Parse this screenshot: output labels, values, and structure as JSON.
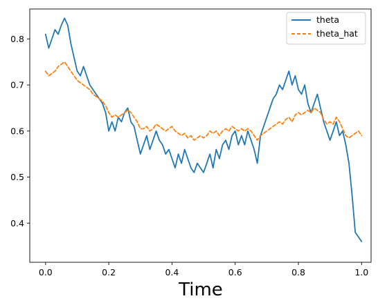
{
  "chart_data": {
    "type": "line",
    "title": "",
    "xlabel": "Time",
    "ylabel": "",
    "xlim": [
      -0.05,
      1.03
    ],
    "ylim": [
      0.315,
      0.865
    ],
    "x_ticks": [
      0.0,
      0.2,
      0.4,
      0.6,
      0.8,
      1.0
    ],
    "x_tick_labels": [
      "0.0",
      "0.2",
      "0.4",
      "0.6",
      "0.8",
      "1.0"
    ],
    "y_ticks": [
      0.4,
      0.5,
      0.6,
      0.7,
      0.8
    ],
    "y_tick_labels": [
      "0.4",
      "0.5",
      "0.6",
      "0.7",
      "0.8"
    ],
    "grid": false,
    "legend_position": "top-right",
    "series": [
      {
        "name": "theta",
        "color": "#1f77b4",
        "style": "solid",
        "x": [
          0.0,
          0.01,
          0.02,
          0.03,
          0.04,
          0.05,
          0.06,
          0.07,
          0.08,
          0.09,
          0.1,
          0.11,
          0.12,
          0.13,
          0.14,
          0.15,
          0.16,
          0.17,
          0.18,
          0.19,
          0.2,
          0.21,
          0.22,
          0.23,
          0.24,
          0.25,
          0.26,
          0.27,
          0.28,
          0.29,
          0.3,
          0.31,
          0.32,
          0.33,
          0.34,
          0.35,
          0.36,
          0.37,
          0.38,
          0.39,
          0.4,
          0.41,
          0.42,
          0.43,
          0.44,
          0.45,
          0.46,
          0.47,
          0.48,
          0.49,
          0.5,
          0.51,
          0.52,
          0.53,
          0.54,
          0.55,
          0.56,
          0.57,
          0.58,
          0.59,
          0.6,
          0.61,
          0.62,
          0.63,
          0.64,
          0.65,
          0.66,
          0.67,
          0.68,
          0.69,
          0.7,
          0.71,
          0.72,
          0.73,
          0.74,
          0.75,
          0.76,
          0.77,
          0.78,
          0.79,
          0.8,
          0.81,
          0.82,
          0.83,
          0.84,
          0.85,
          0.86,
          0.87,
          0.88,
          0.89,
          0.9,
          0.91,
          0.92,
          0.93,
          0.94,
          0.95,
          0.96,
          0.97,
          0.98,
          0.99,
          1.0
        ],
        "y": [
          0.81,
          0.78,
          0.8,
          0.82,
          0.81,
          0.83,
          0.845,
          0.83,
          0.79,
          0.76,
          0.73,
          0.72,
          0.74,
          0.72,
          0.7,
          0.69,
          0.68,
          0.67,
          0.66,
          0.64,
          0.6,
          0.62,
          0.6,
          0.63,
          0.62,
          0.64,
          0.65,
          0.62,
          0.61,
          0.58,
          0.55,
          0.57,
          0.59,
          0.56,
          0.58,
          0.6,
          0.58,
          0.57,
          0.55,
          0.56,
          0.54,
          0.52,
          0.55,
          0.53,
          0.56,
          0.54,
          0.52,
          0.51,
          0.53,
          0.52,
          0.51,
          0.53,
          0.55,
          0.52,
          0.56,
          0.54,
          0.57,
          0.58,
          0.56,
          0.59,
          0.6,
          0.57,
          0.59,
          0.57,
          0.6,
          0.58,
          0.56,
          0.53,
          0.59,
          0.61,
          0.63,
          0.65,
          0.67,
          0.68,
          0.7,
          0.69,
          0.71,
          0.73,
          0.7,
          0.72,
          0.69,
          0.68,
          0.7,
          0.66,
          0.64,
          0.66,
          0.68,
          0.65,
          0.62,
          0.6,
          0.58,
          0.6,
          0.62,
          0.59,
          0.6,
          0.57,
          0.53,
          0.46,
          0.38,
          0.37,
          0.36
        ]
      },
      {
        "name": "theta_hat",
        "color": "#ff7f0e",
        "style": "dashed",
        "x": [
          0.0,
          0.01,
          0.02,
          0.03,
          0.04,
          0.05,
          0.06,
          0.07,
          0.08,
          0.09,
          0.1,
          0.11,
          0.12,
          0.13,
          0.14,
          0.15,
          0.16,
          0.17,
          0.18,
          0.19,
          0.2,
          0.21,
          0.22,
          0.23,
          0.24,
          0.25,
          0.26,
          0.27,
          0.28,
          0.29,
          0.3,
          0.31,
          0.32,
          0.33,
          0.34,
          0.35,
          0.36,
          0.37,
          0.38,
          0.39,
          0.4,
          0.41,
          0.42,
          0.43,
          0.44,
          0.45,
          0.46,
          0.47,
          0.48,
          0.49,
          0.5,
          0.51,
          0.52,
          0.53,
          0.54,
          0.55,
          0.56,
          0.57,
          0.58,
          0.59,
          0.6,
          0.61,
          0.62,
          0.63,
          0.64,
          0.65,
          0.66,
          0.67,
          0.68,
          0.69,
          0.7,
          0.71,
          0.72,
          0.73,
          0.74,
          0.75,
          0.76,
          0.77,
          0.78,
          0.79,
          0.8,
          0.81,
          0.82,
          0.83,
          0.84,
          0.85,
          0.86,
          0.87,
          0.88,
          0.89,
          0.9,
          0.91,
          0.92,
          0.93,
          0.94,
          0.95,
          0.96,
          0.97,
          0.98,
          0.99,
          1.0
        ],
        "y": [
          0.73,
          0.72,
          0.725,
          0.73,
          0.74,
          0.745,
          0.75,
          0.74,
          0.73,
          0.72,
          0.71,
          0.705,
          0.7,
          0.695,
          0.69,
          0.68,
          0.675,
          0.67,
          0.665,
          0.655,
          0.64,
          0.63,
          0.635,
          0.63,
          0.635,
          0.64,
          0.645,
          0.64,
          0.63,
          0.62,
          0.605,
          0.605,
          0.61,
          0.6,
          0.605,
          0.615,
          0.61,
          0.605,
          0.6,
          0.605,
          0.61,
          0.6,
          0.595,
          0.59,
          0.595,
          0.585,
          0.59,
          0.58,
          0.585,
          0.59,
          0.585,
          0.59,
          0.6,
          0.595,
          0.6,
          0.59,
          0.6,
          0.605,
          0.6,
          0.61,
          0.605,
          0.6,
          0.605,
          0.6,
          0.605,
          0.6,
          0.59,
          0.58,
          0.59,
          0.595,
          0.6,
          0.605,
          0.61,
          0.615,
          0.62,
          0.615,
          0.625,
          0.63,
          0.62,
          0.635,
          0.64,
          0.635,
          0.64,
          0.645,
          0.64,
          0.65,
          0.645,
          0.64,
          0.625,
          0.615,
          0.62,
          0.615,
          0.63,
          0.62,
          0.605,
          0.59,
          0.585,
          0.59,
          0.595,
          0.6,
          0.59
        ]
      }
    ]
  }
}
